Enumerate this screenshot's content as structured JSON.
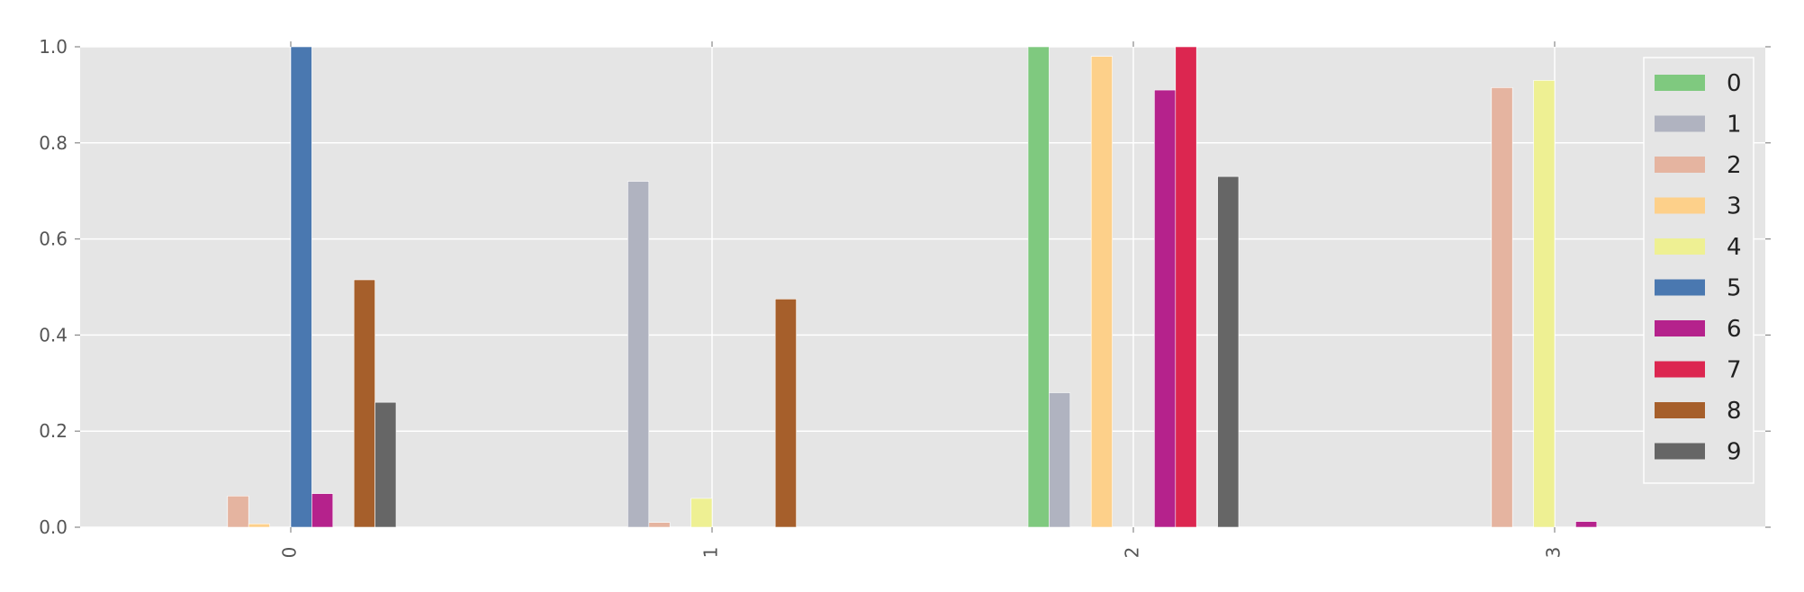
{
  "chart_data": {
    "type": "bar",
    "categories": [
      "0",
      "1",
      "2",
      "3"
    ],
    "ylim": [
      0,
      1.0
    ],
    "xlim": [
      -0.5,
      3.5
    ],
    "yticks": [
      "0.0",
      "0.2",
      "0.4",
      "0.6",
      "0.8",
      "1.0"
    ],
    "grid": true,
    "legend_position": "top-right",
    "series": [
      {
        "name": "0",
        "color": "#7fc97f",
        "values": [
          0.0,
          0.0,
          1.0,
          0.0
        ]
      },
      {
        "name": "1",
        "color": "#b0b3c0",
        "values": [
          0.0,
          0.72,
          0.28,
          0.0
        ]
      },
      {
        "name": "2",
        "color": "#e5b4a0",
        "values": [
          0.065,
          0.01,
          0.0,
          0.915
        ]
      },
      {
        "name": "3",
        "color": "#fdd08a",
        "values": [
          0.007,
          0.0,
          0.98,
          0.0
        ]
      },
      {
        "name": "4",
        "color": "#eef093",
        "values": [
          0.0,
          0.06,
          0.0,
          0.93
        ]
      },
      {
        "name": "5",
        "color": "#4a78b0",
        "values": [
          1.0,
          0.0,
          0.0,
          0.0
        ]
      },
      {
        "name": "6",
        "color": "#b5228c",
        "values": [
          0.07,
          0.0,
          0.91,
          0.012
        ]
      },
      {
        "name": "7",
        "color": "#dc2650",
        "values": [
          0.0,
          0.0,
          1.0,
          0.0
        ]
      },
      {
        "name": "8",
        "color": "#a65f2b",
        "values": [
          0.515,
          0.475,
          0.0,
          0.0
        ]
      },
      {
        "name": "9",
        "color": "#666666",
        "values": [
          0.26,
          0.0,
          0.73,
          0.0
        ]
      }
    ]
  }
}
